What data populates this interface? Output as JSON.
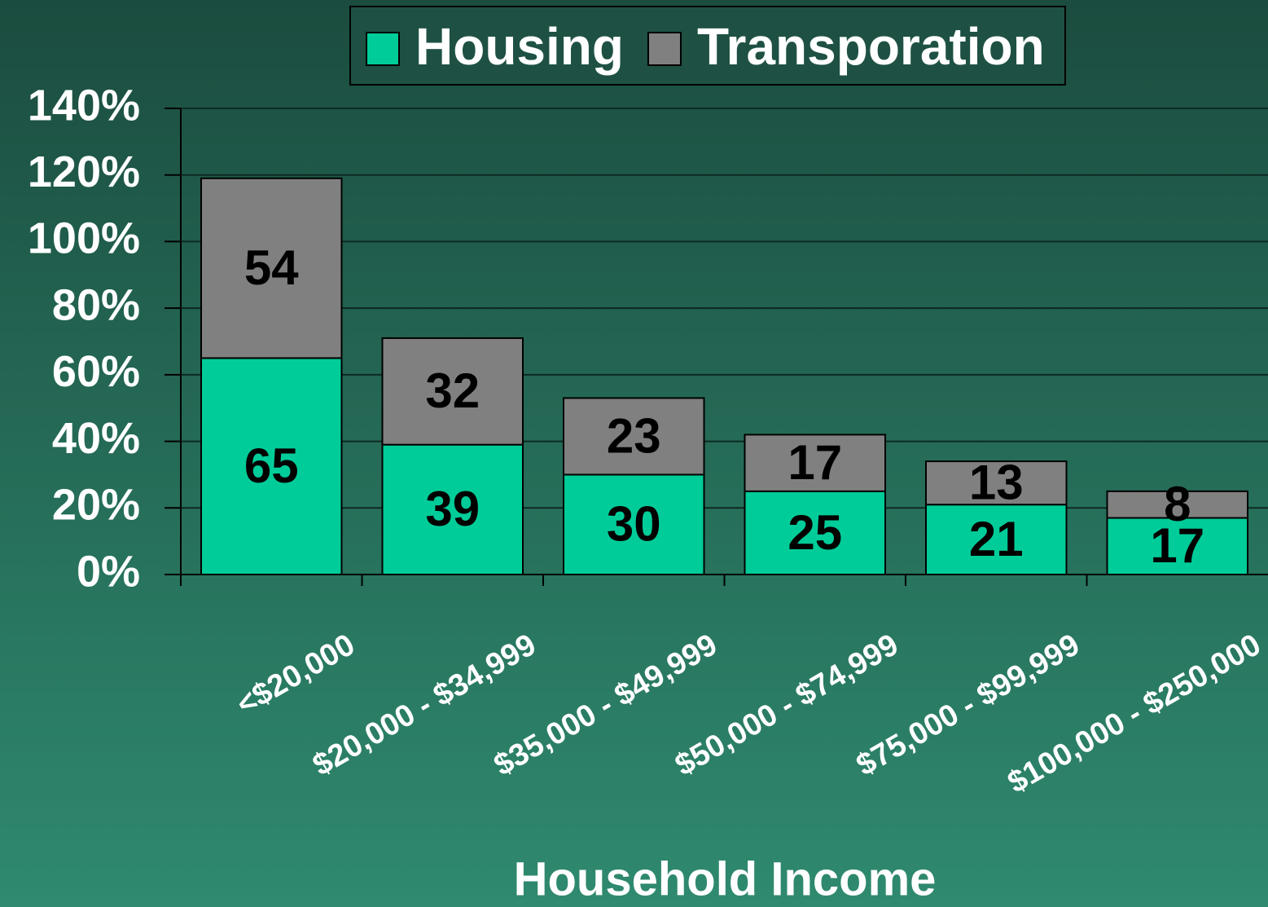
{
  "chart_data": {
    "type": "bar",
    "stacked": true,
    "categories": [
      "<$20,000",
      "$20,000 - $34,999",
      "$35,000 - $49,999",
      "$50,000 - $74,999",
      "$75,000 - $99,999",
      "$100,000 - $250,000"
    ],
    "series": [
      {
        "name": "Housing",
        "color": "#00cc99",
        "values": [
          65,
          39,
          30,
          25,
          21,
          17
        ]
      },
      {
        "name": "Transporation",
        "color": "#808080",
        "values": [
          54,
          32,
          23,
          17,
          13,
          8
        ]
      }
    ],
    "ylim": [
      0,
      140
    ],
    "yticks": [
      {
        "value": 0,
        "label": "0%"
      },
      {
        "value": 20,
        "label": "20%"
      },
      {
        "value": 40,
        "label": "40%"
      },
      {
        "value": 60,
        "label": "60%"
      },
      {
        "value": 80,
        "label": "80%"
      },
      {
        "value": 100,
        "label": "100%"
      },
      {
        "value": 120,
        "label": "120%"
      },
      {
        "value": 140,
        "label": "140%"
      }
    ],
    "grid": true,
    "x_label": "Household Income",
    "legend": "top"
  }
}
